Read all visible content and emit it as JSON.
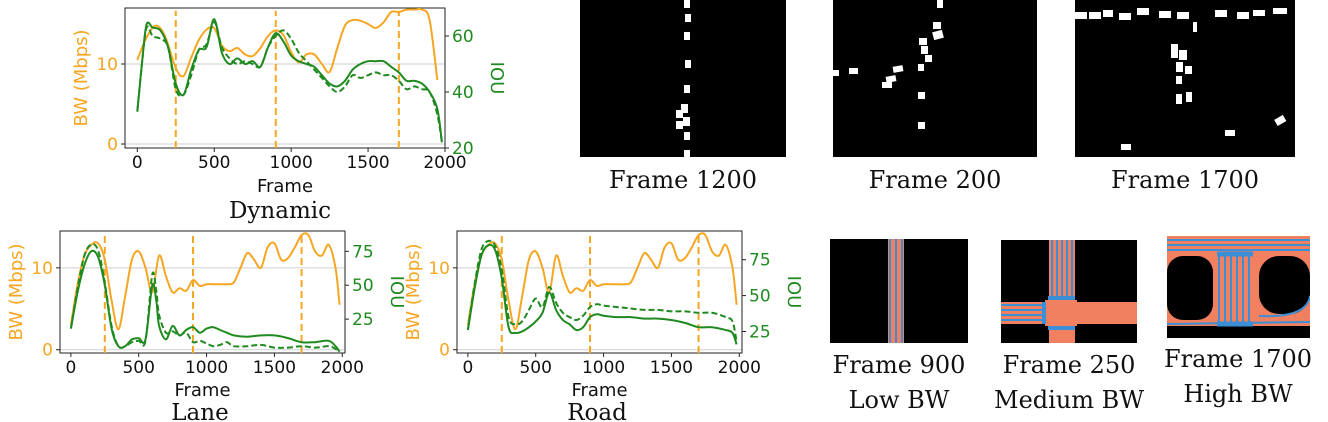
{
  "colors": {
    "bw": "#f5a623",
    "iou": "#1f8a1f",
    "grid": "#cfcfcf",
    "road_fill": "#f08060",
    "lane_blue": "#3b8fd6"
  },
  "chart_data": [
    {
      "id": "dynamic",
      "type": "line",
      "title": "Dynamic",
      "xlabel": "Frame",
      "ylabel_left": "BW (Mbps)",
      "ylabel_right": "IOU",
      "xlim": [
        -80,
        2000
      ],
      "ylim_left": [
        -0.5,
        17
      ],
      "ylim_right": [
        20,
        70
      ],
      "xticks": [
        "0",
        "500",
        "1000",
        "1500",
        "2000"
      ],
      "xtick_values": [
        0,
        500,
        1000,
        1500,
        2000
      ],
      "yticks_left": [
        "0",
        "10"
      ],
      "ytick_values_left": [
        0,
        10
      ],
      "yticks_right": [
        "20",
        "40",
        "60"
      ],
      "ytick_values_right": [
        20,
        40,
        60
      ],
      "grid": true,
      "marker_frames": [
        250,
        900,
        1700
      ],
      "series": [
        {
          "axis": "left",
          "style": "solid",
          "color": "bw",
          "x": [
            0,
            60,
            120,
            180,
            250,
            300,
            350,
            400,
            450,
            500,
            550,
            600,
            650,
            700,
            750,
            800,
            850,
            900,
            950,
            1000,
            1050,
            1100,
            1150,
            1200,
            1250,
            1300,
            1350,
            1400,
            1450,
            1500,
            1550,
            1600,
            1650,
            1700,
            1750,
            1800,
            1850,
            1900,
            1950
          ],
          "y": [
            10.5,
            13.3,
            14.8,
            13.5,
            9.5,
            8.5,
            10.8,
            13,
            14.3,
            14.5,
            12.3,
            11.6,
            12,
            11.2,
            11,
            12,
            13.5,
            14.2,
            13.6,
            11.5,
            10.2,
            11.2,
            11.2,
            10,
            9,
            12,
            14.8,
            15.5,
            15.4,
            15,
            14.5,
            15.2,
            16.5,
            16.5,
            16.8,
            16.8,
            16.8,
            15.5,
            8
          ]
        },
        {
          "axis": "right",
          "style": "solid",
          "color": "iou",
          "x": [
            0,
            30,
            60,
            100,
            150,
            200,
            250,
            300,
            350,
            400,
            450,
            500,
            550,
            600,
            650,
            700,
            750,
            800,
            850,
            900,
            950,
            1000,
            1050,
            1100,
            1150,
            1200,
            1250,
            1300,
            1350,
            1400,
            1450,
            1500,
            1550,
            1600,
            1650,
            1700,
            1750,
            1800,
            1850,
            1900,
            1950,
            1980
          ],
          "y": [
            33,
            50,
            64,
            63,
            62,
            56,
            43,
            39,
            48,
            55,
            56,
            66,
            54,
            50,
            52,
            50,
            51,
            49,
            56,
            61,
            58,
            53,
            51,
            50,
            49,
            46,
            43,
            42,
            44,
            48,
            50,
            51,
            51,
            51,
            49,
            47,
            44,
            44,
            43,
            40,
            34,
            22
          ]
        },
        {
          "axis": "right",
          "style": "dashed",
          "color": "iou",
          "x": [
            0,
            30,
            60,
            100,
            150,
            200,
            250,
            300,
            350,
            400,
            450,
            500,
            550,
            600,
            650,
            700,
            750,
            800,
            850,
            900,
            950,
            1000,
            1050,
            1100,
            1150,
            1200,
            1250,
            1300,
            1350,
            1400,
            1450,
            1500,
            1550,
            1600,
            1650,
            1700,
            1750,
            1800,
            1850,
            1900,
            1950,
            1980
          ],
          "y": [
            33,
            50,
            63,
            60,
            59,
            56,
            41,
            39,
            46,
            55,
            57,
            65,
            56,
            52,
            50,
            51,
            50,
            49,
            56,
            60,
            62,
            59,
            54,
            51,
            48,
            45,
            42,
            40,
            42,
            46,
            45,
            46,
            47,
            46,
            46,
            44,
            41,
            42,
            41,
            40,
            32,
            22
          ]
        }
      ]
    },
    {
      "id": "lane",
      "type": "line",
      "title": "Lane",
      "xlabel": "Frame",
      "ylabel_left": "BW (Mbps)",
      "ylabel_right": "IOU",
      "xlim": [
        -80,
        2020
      ],
      "ylim_left": [
        -0.4,
        14.5
      ],
      "ylim_right": [
        0,
        90
      ],
      "xticks": [
        "0",
        "500",
        "1000",
        "1500",
        "2000"
      ],
      "xtick_values": [
        0,
        500,
        1000,
        1500,
        2000
      ],
      "yticks_left": [
        "0",
        "10"
      ],
      "ytick_values_left": [
        0,
        10
      ],
      "yticks_right": [
        "25",
        "50",
        "75"
      ],
      "ytick_values_right": [
        25,
        50,
        75
      ],
      "grid": true,
      "marker_frames": [
        250,
        900,
        1700
      ],
      "series": [
        {
          "axis": "left",
          "style": "solid",
          "color": "bw",
          "x": [
            0,
            50,
            100,
            150,
            200,
            250,
            300,
            350,
            400,
            450,
            500,
            550,
            600,
            650,
            700,
            750,
            800,
            850,
            900,
            950,
            1000,
            1050,
            1100,
            1150,
            1200,
            1250,
            1300,
            1350,
            1400,
            1450,
            1500,
            1550,
            1600,
            1650,
            1700,
            1750,
            1800,
            1850,
            1900,
            1950,
            1980
          ],
          "y": [
            3,
            8,
            11.5,
            12.8,
            13,
            11,
            6,
            2.5,
            6.5,
            11,
            12,
            10,
            7,
            11.5,
            9,
            7,
            7.5,
            7.2,
            8.5,
            7.8,
            8,
            8,
            8,
            8,
            8.2,
            10,
            11.8,
            11,
            10,
            12.5,
            13,
            11,
            11.2,
            12.5,
            14,
            14,
            12,
            11.5,
            12.8,
            10,
            5.5
          ]
        },
        {
          "axis": "right",
          "style": "solid",
          "color": "iou",
          "x": [
            0,
            50,
            100,
            150,
            200,
            250,
            300,
            350,
            400,
            450,
            500,
            550,
            600,
            630,
            650,
            700,
            750,
            800,
            850,
            900,
            950,
            1000,
            1050,
            1100,
            1150,
            1200,
            1300,
            1400,
            1500,
            1600,
            1700,
            1800,
            1900,
            1950,
            1980
          ],
          "y": [
            18,
            45,
            65,
            75,
            71,
            50,
            18,
            5,
            5,
            10,
            11,
            10,
            50,
            38,
            20,
            10,
            20,
            13,
            17,
            19,
            15,
            18,
            19,
            17,
            15,
            13,
            12,
            13,
            13,
            11,
            8,
            8,
            9,
            5,
            1
          ]
        },
        {
          "axis": "right",
          "style": "dashed",
          "color": "iou",
          "x": [
            0,
            50,
            100,
            150,
            200,
            250,
            300,
            350,
            400,
            450,
            500,
            550,
            600,
            630,
            650,
            700,
            750,
            800,
            850,
            900,
            950,
            1000,
            1050,
            1100,
            1150,
            1200,
            1300,
            1400,
            1500,
            1600,
            1700,
            1800,
            1900,
            1950,
            1980
          ],
          "y": [
            18,
            48,
            72,
            80,
            76,
            52,
            20,
            5,
            5,
            8,
            9,
            9,
            58,
            45,
            28,
            15,
            16,
            13,
            15,
            8,
            9,
            7,
            5,
            6,
            8,
            5,
            5,
            6,
            4,
            4,
            5,
            4,
            5,
            3,
            1
          ]
        }
      ]
    },
    {
      "id": "road",
      "type": "line",
      "title": "Road",
      "xlabel": "Frame",
      "ylabel_left": "BW (Mbps)",
      "ylabel_right": "IOU",
      "xlim": [
        -80,
        2020
      ],
      "ylim_left": [
        -0.4,
        14.5
      ],
      "ylim_right": [
        10,
        95
      ],
      "xticks": [
        "0",
        "500",
        "1000",
        "1500",
        "2000"
      ],
      "xtick_values": [
        0,
        500,
        1000,
        1500,
        2000
      ],
      "yticks_left": [
        "0",
        "10"
      ],
      "ytick_values_left": [
        0,
        10
      ],
      "yticks_right": [
        "25",
        "50",
        "75"
      ],
      "ytick_values_right": [
        25,
        50,
        75
      ],
      "grid": true,
      "marker_frames": [
        250,
        900,
        1700
      ],
      "series": [
        {
          "axis": "left",
          "style": "solid",
          "color": "bw",
          "x": [
            0,
            50,
            100,
            150,
            200,
            250,
            300,
            350,
            400,
            450,
            500,
            550,
            600,
            650,
            700,
            750,
            800,
            850,
            900,
            950,
            1000,
            1050,
            1100,
            1150,
            1200,
            1250,
            1300,
            1350,
            1400,
            1450,
            1500,
            1550,
            1600,
            1650,
            1700,
            1750,
            1800,
            1850,
            1900,
            1950,
            1980
          ],
          "y": [
            3,
            8,
            11.5,
            12.8,
            13,
            11,
            6,
            2.5,
            6.5,
            11,
            12,
            10,
            7,
            11.5,
            9,
            7,
            7.5,
            7.2,
            8.5,
            7.8,
            8,
            8,
            8,
            8,
            8.2,
            10,
            11.8,
            11,
            10,
            12.5,
            13,
            11,
            11.2,
            12.5,
            14,
            14,
            12,
            11.5,
            12.8,
            10,
            5.5
          ]
        },
        {
          "axis": "right",
          "style": "solid",
          "color": "iou",
          "x": [
            0,
            50,
            100,
            150,
            200,
            250,
            300,
            350,
            400,
            450,
            500,
            550,
            600,
            650,
            700,
            750,
            800,
            850,
            900,
            950,
            1000,
            1100,
            1200,
            1300,
            1400,
            1500,
            1600,
            1700,
            1800,
            1900,
            1950,
            1980
          ],
          "y": [
            26,
            55,
            78,
            85,
            82,
            62,
            28,
            24,
            25,
            28,
            32,
            38,
            52,
            40,
            33,
            30,
            26,
            28,
            35,
            37,
            36,
            35,
            35,
            34,
            34,
            33,
            31,
            28,
            28,
            26,
            24,
            16
          ]
        },
        {
          "axis": "right",
          "style": "dashed",
          "color": "iou",
          "x": [
            0,
            50,
            100,
            150,
            200,
            250,
            300,
            350,
            400,
            450,
            500,
            550,
            600,
            650,
            700,
            750,
            800,
            850,
            900,
            950,
            1000,
            1100,
            1200,
            1300,
            1400,
            1500,
            1600,
            1700,
            1800,
            1900,
            1950,
            1980
          ],
          "y": [
            26,
            58,
            82,
            88,
            85,
            68,
            35,
            30,
            32,
            40,
            48,
            42,
            56,
            45,
            38,
            35,
            33,
            36,
            42,
            44,
            43,
            42,
            41,
            40,
            40,
            39,
            39,
            38,
            38,
            35,
            32,
            18
          ]
        }
      ]
    }
  ],
  "captions": {
    "f1200": "Frame 1200",
    "f200": "Frame 200",
    "f1700": "Frame 1700",
    "f900_a": "Frame 900",
    "f900_b": "Low BW",
    "f250_a": "Frame 250",
    "f250_b": "Medium BW",
    "f1700_a": "Frame 1700",
    "f1700_b": "High BW"
  }
}
